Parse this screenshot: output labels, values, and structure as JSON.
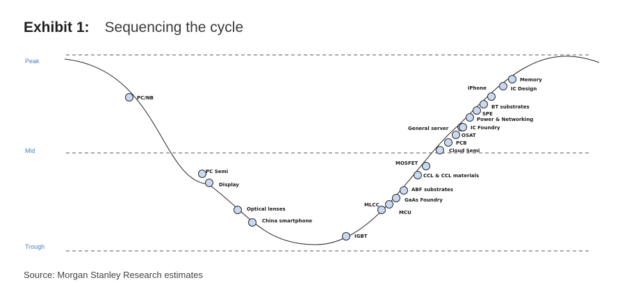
{
  "title": {
    "exhibit": "Exhibit 1:",
    "subtitle": "Sequencing the cycle"
  },
  "levels": {
    "peak": "Peak",
    "mid": "Mid",
    "trough": "Trough"
  },
  "items": [
    {
      "label": "PC/NB"
    },
    {
      "label": "PC Semi"
    },
    {
      "label": "Display"
    },
    {
      "label": "Optical lenses"
    },
    {
      "label": "China smartphone"
    },
    {
      "label": "IGBT"
    },
    {
      "label": "MCU"
    },
    {
      "label": "MLCC"
    },
    {
      "label": "GaAs Foundry"
    },
    {
      "label": "ABF substrates"
    },
    {
      "label": "CCL & CCL materials"
    },
    {
      "label": "MOSFET"
    },
    {
      "label": "Cloud Semi"
    },
    {
      "label": "PCB"
    },
    {
      "label": "OSAT"
    },
    {
      "label": "General server"
    },
    {
      "label": "IC Foundry"
    },
    {
      "label": "Power & Networking"
    },
    {
      "label": "SPE"
    },
    {
      "label": "BT substrates"
    },
    {
      "label": "iPhone"
    },
    {
      "label": "IC Design"
    },
    {
      "label": "Memory"
    }
  ],
  "source": "Source: Morgan Stanley Research estimates"
}
